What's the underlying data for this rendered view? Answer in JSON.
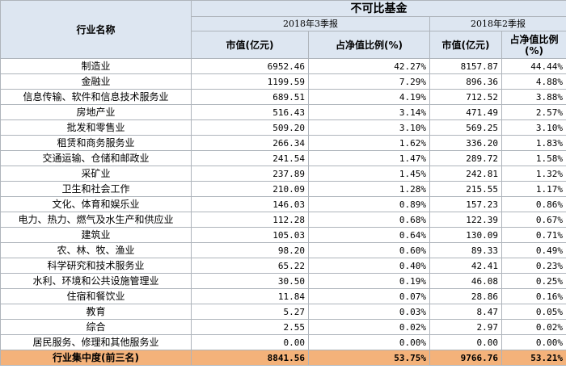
{
  "header": {
    "industry_label": "行业名称",
    "group_title": "不可比基金",
    "q3_label": "2018年3季报",
    "q2_label": "2018年2季报",
    "col_market_value": "市值(亿元)",
    "col_ratio": "占净值比例(%)"
  },
  "rows": [
    {
      "industry": "制造业",
      "q3_value": "6952.46",
      "q3_pct": "42.27%",
      "q2_value": "8157.87",
      "q2_pct": "44.44%"
    },
    {
      "industry": "金融业",
      "q3_value": "1199.59",
      "q3_pct": "7.29%",
      "q2_value": "896.36",
      "q2_pct": "4.88%"
    },
    {
      "industry": "信息传输、软件和信息技术服务业",
      "q3_value": "689.51",
      "q3_pct": "4.19%",
      "q2_value": "712.52",
      "q2_pct": "3.88%"
    },
    {
      "industry": "房地产业",
      "q3_value": "516.43",
      "q3_pct": "3.14%",
      "q2_value": "471.49",
      "q2_pct": "2.57%"
    },
    {
      "industry": "批发和零售业",
      "q3_value": "509.20",
      "q3_pct": "3.10%",
      "q2_value": "569.25",
      "q2_pct": "3.10%"
    },
    {
      "industry": "租赁和商务服务业",
      "q3_value": "266.34",
      "q3_pct": "1.62%",
      "q2_value": "336.20",
      "q2_pct": "1.83%"
    },
    {
      "industry": "交通运输、仓储和邮政业",
      "q3_value": "241.54",
      "q3_pct": "1.47%",
      "q2_value": "289.72",
      "q2_pct": "1.58%"
    },
    {
      "industry": "采矿业",
      "q3_value": "237.89",
      "q3_pct": "1.45%",
      "q2_value": "242.81",
      "q2_pct": "1.32%"
    },
    {
      "industry": "卫生和社会工作",
      "q3_value": "210.09",
      "q3_pct": "1.28%",
      "q2_value": "215.55",
      "q2_pct": "1.17%"
    },
    {
      "industry": "文化、体育和娱乐业",
      "q3_value": "146.03",
      "q3_pct": "0.89%",
      "q2_value": "157.23",
      "q2_pct": "0.86%"
    },
    {
      "industry": "电力、热力、燃气及水生产和供应业",
      "q3_value": "112.28",
      "q3_pct": "0.68%",
      "q2_value": "122.39",
      "q2_pct": "0.67%"
    },
    {
      "industry": "建筑业",
      "q3_value": "105.03",
      "q3_pct": "0.64%",
      "q2_value": "130.09",
      "q2_pct": "0.71%"
    },
    {
      "industry": "农、林、牧、渔业",
      "q3_value": "98.20",
      "q3_pct": "0.60%",
      "q2_value": "89.33",
      "q2_pct": "0.49%"
    },
    {
      "industry": "科学研究和技术服务业",
      "q3_value": "65.22",
      "q3_pct": "0.40%",
      "q2_value": "42.41",
      "q2_pct": "0.23%"
    },
    {
      "industry": "水利、环境和公共设施管理业",
      "q3_value": "30.50",
      "q3_pct": "0.19%",
      "q2_value": "46.08",
      "q2_pct": "0.25%"
    },
    {
      "industry": "住宿和餐饮业",
      "q3_value": "11.84",
      "q3_pct": "0.07%",
      "q2_value": "28.86",
      "q2_pct": "0.16%"
    },
    {
      "industry": "教育",
      "q3_value": "5.27",
      "q3_pct": "0.03%",
      "q2_value": "8.47",
      "q2_pct": "0.05%"
    },
    {
      "industry": "综合",
      "q3_value": "2.55",
      "q3_pct": "0.02%",
      "q2_value": "2.97",
      "q2_pct": "0.02%"
    },
    {
      "industry": "居民服务、修理和其他服务业",
      "q3_value": "0.00",
      "q3_pct": "0.00%",
      "q2_value": "0.00",
      "q2_pct": "0.00%"
    }
  ],
  "footer": {
    "label": "行业集中度(前三名)",
    "q3_value": "8841.56",
    "q3_pct": "53.75%",
    "q2_value": "9766.76",
    "q2_pct": "53.21%"
  },
  "colors": {
    "header_bg": "#dde6f1",
    "footer_bg": "#f4b27a",
    "border": "#aeb4bb"
  }
}
